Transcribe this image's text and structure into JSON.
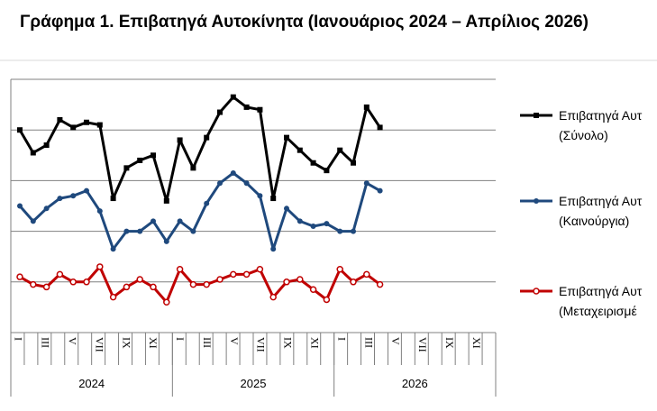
{
  "title": "Γράφημα 1. Επιβατηγά Αυτοκίνητα (Ιανουάριος 2024 – Απρίλιος 2026)",
  "chart_data": {
    "type": "line",
    "title": "Γράφημα 1. Επιβατηγά Αυτοκίνητα (Ιανουάριος 2024 – Απρίλιος 2026)",
    "xlabel": "",
    "ylabel": "",
    "grid": true,
    "legend_position": "right",
    "ylim": [
      0,
      100
    ],
    "x_ticks": [
      {
        "pos": 0,
        "label": "I"
      },
      {
        "pos": 2,
        "label": "III"
      },
      {
        "pos": 4,
        "label": "V"
      },
      {
        "pos": 6,
        "label": "VII"
      },
      {
        "pos": 8,
        "label": "IX"
      },
      {
        "pos": 10,
        "label": "XI"
      },
      {
        "pos": 12,
        "label": "I"
      },
      {
        "pos": 14,
        "label": "III"
      },
      {
        "pos": 16,
        "label": "V"
      },
      {
        "pos": 18,
        "label": "VII"
      },
      {
        "pos": 20,
        "label": "IX"
      },
      {
        "pos": 22,
        "label": "XI"
      },
      {
        "pos": 24,
        "label": "I"
      },
      {
        "pos": 26,
        "label": "III"
      },
      {
        "pos": 28,
        "label": "V"
      },
      {
        "pos": 30,
        "label": "VII"
      },
      {
        "pos": 32,
        "label": "IX"
      },
      {
        "pos": 34,
        "label": "XI"
      }
    ],
    "years": [
      {
        "label": "2024",
        "start": 0,
        "end": 11
      },
      {
        "label": "2025",
        "start": 12,
        "end": 23
      },
      {
        "label": "2026",
        "start": 24,
        "end": 35
      }
    ],
    "months_total": 36,
    "series": [
      {
        "name": "Επιβατηγά Αυτοκίνητα (Σύνολο)",
        "legend_lines": [
          "Επιβατηγά Αυτ",
          "(Σύνολο)"
        ],
        "color": "#000000",
        "marker": "square",
        "values": [
          80,
          71,
          74,
          84,
          81,
          83,
          82,
          53,
          65,
          68,
          70,
          52,
          76,
          65,
          77,
          87,
          93,
          89,
          88,
          53,
          77,
          72,
          67,
          64,
          72,
          67,
          89,
          81
        ]
      },
      {
        "name": "Επιβατηγά Αυτοκίνητα (Καινούργια)",
        "legend_lines": [
          "Επιβατηγά Αυτ",
          "(Καινούργια)"
        ],
        "color": "#1f497d",
        "marker": "circle",
        "values": [
          50,
          44,
          49,
          53,
          54,
          56,
          48,
          33,
          40,
          40,
          44,
          36,
          44,
          40,
          51,
          59,
          63,
          59,
          54,
          33,
          49,
          44,
          42,
          43,
          40,
          40,
          59,
          56
        ]
      },
      {
        "name": "Επιβατηγά Αυτοκίνητα (Μεταχειρισμένα)",
        "legend_lines": [
          "Επιβατηγά Αυτ",
          "(Μεταχειρισμέ"
        ],
        "color": "#c00000",
        "marker": "circle-open",
        "values": [
          22,
          19,
          18,
          23,
          20,
          20,
          26,
          14,
          18,
          21,
          18,
          12,
          25,
          19,
          19,
          21,
          23,
          23,
          25,
          14,
          20,
          21,
          17,
          13,
          25,
          20,
          23,
          19
        ]
      }
    ]
  }
}
